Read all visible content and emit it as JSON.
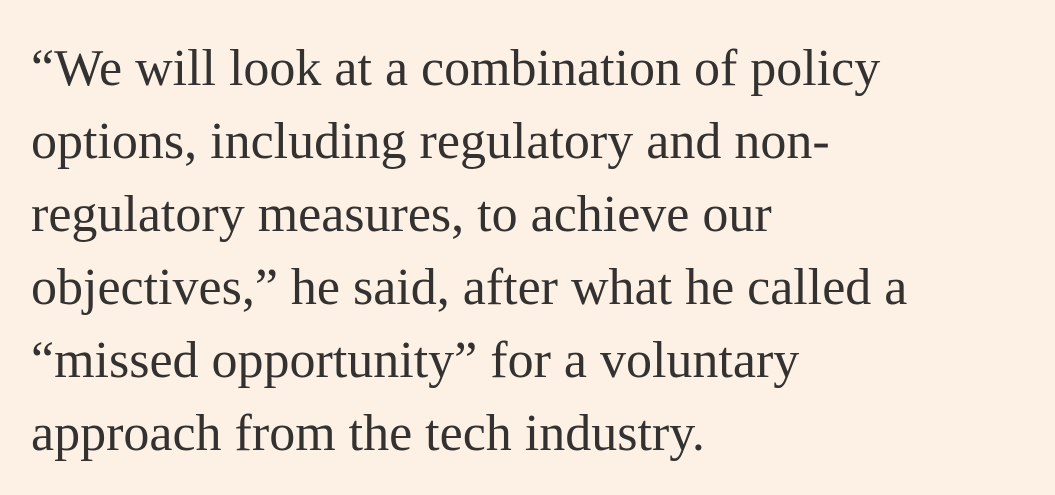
{
  "paragraph": {
    "lines": [
      "“We will look at a combination of policy",
      "options, including regulatory and non-",
      "regulatory measures, to achieve our",
      "objectives,” he said, after what he called a",
      "“missed opportunity” for a voluntary",
      "approach from the tech industry."
    ]
  }
}
